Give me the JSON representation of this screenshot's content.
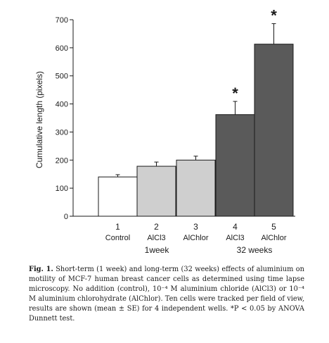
{
  "chart_data": {
    "type": "bar",
    "ylabel": "Cumulative length (pixels)",
    "ylim": [
      0,
      700
    ],
    "yticks": [
      0,
      100,
      200,
      300,
      400,
      500,
      600,
      700
    ],
    "categories": [
      "1",
      "2",
      "3",
      "4",
      "5"
    ],
    "category_labels": [
      "Control",
      "AlCl3",
      "AlChlor",
      "AlCl3",
      "AlChlor"
    ],
    "values": [
      140,
      178,
      200,
      362,
      613
    ],
    "errors": [
      8,
      15,
      14,
      47,
      73
    ],
    "colors": [
      "#ffffff",
      "#cfcfcf",
      "#cfcfcf",
      "#5a5a5a",
      "#5a5a5a"
    ],
    "significance": [
      "",
      "",
      "",
      "*",
      "*"
    ],
    "groups": [
      {
        "label": "1week",
        "categories": [
          "1",
          "2",
          "3"
        ]
      },
      {
        "label": "32 weeks",
        "categories": [
          "4",
          "5"
        ]
      }
    ],
    "grid": false
  },
  "caption": {
    "label": "Fig. 1.",
    "text": " Short-term (1 week) and long-term (32 weeks) effects of aluminium on motility of MCF-7 human breast cancer cells as determined using time lapse microscopy. No addition (control), 10⁻⁴ M aluminium chloride (AlCl3) or 10⁻⁴ M aluminium chlorohydrate (AlChlor). Ten cells were tracked per field of view, results are shown (mean ± SE) for 4 independent wells. *P < 0.05 by ANOVA Dunnett test."
  }
}
